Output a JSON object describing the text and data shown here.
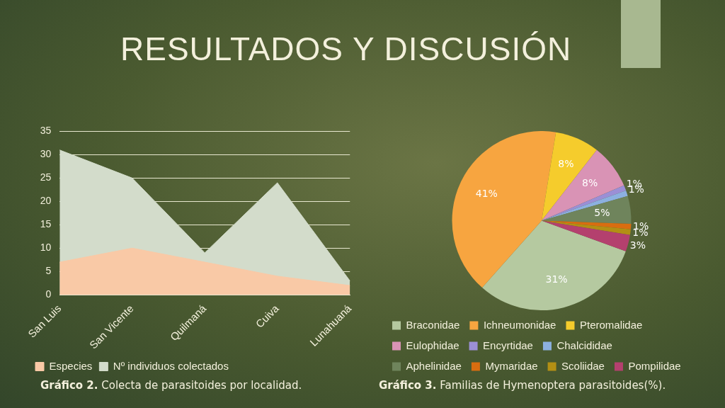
{
  "chart_data": [
    {
      "type": "area",
      "title": "RESULTADOS Y DISCUSIÓN",
      "categories": [
        "San Luis",
        "San Vicente",
        "Quilmaná",
        "Cuiva",
        "Lunahuaná"
      ],
      "series": [
        {
          "name": "Nº individuos colectados",
          "color": "#d3dccb",
          "values": [
            31,
            25,
            9,
            24,
            3
          ]
        },
        {
          "name": "Especies",
          "color": "#f9c9a6",
          "values": [
            7,
            10,
            7,
            4,
            2
          ]
        }
      ],
      "ylim": [
        0,
        35
      ],
      "yticks": [
        0,
        5,
        10,
        15,
        20,
        25,
        30,
        35
      ],
      "grid": "y",
      "legend": "bottom",
      "annotations": [
        "Gráfico 2. Colecta de parasitoides por localidad."
      ]
    },
    {
      "type": "pie",
      "categories": [
        "Braconidae",
        "Ichneumonidae",
        "Pteromalidae",
        "Eulophidae",
        "Encyrtidae",
        "Chalcididae",
        "Aphelinidae",
        "Mymaridae",
        "Scoliidae",
        "Pompilidae"
      ],
      "values": [
        31,
        41,
        8,
        8,
        1,
        1,
        5,
        1,
        1,
        3
      ],
      "value_labels": [
        "31%",
        "41%",
        "8%",
        "8%",
        "1%",
        "1%",
        "5%",
        "1%",
        "1%",
        "3%"
      ],
      "colors": [
        "#b5c9a0",
        "#f7a540",
        "#f5cc2c",
        "#d993b5",
        "#9b8fd6",
        "#8cb0e0",
        "#6f845c",
        "#d96d10",
        "#b38f14",
        "#b4406e"
      ],
      "legend": "bottom",
      "annotations": [
        "Gráfico 3. Familias de Hymenoptera parasitoides(%)."
      ]
    }
  ]
}
